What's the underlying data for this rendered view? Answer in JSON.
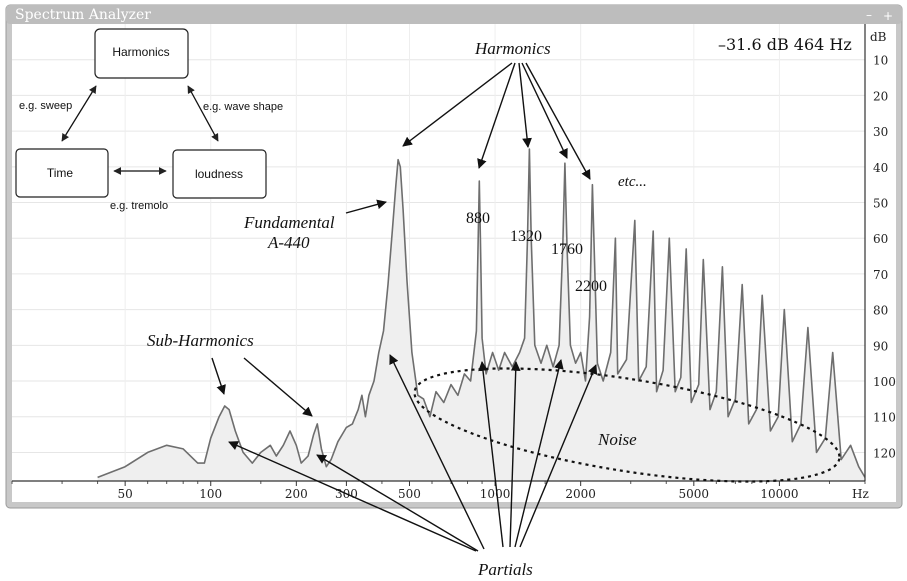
{
  "window": {
    "title": "Spectrum Analyzer",
    "minimize_glyph": "–",
    "maximize_glyph": "+"
  },
  "readout": "–31.6 dB 464 Hz",
  "diagram": {
    "nodes": {
      "harmonics": "Harmonics",
      "time": "Time",
      "loudness": "loudness"
    },
    "edge_labels": {
      "sweep": "e.g. sweep",
      "wave_shape": "e.g. wave shape",
      "tremolo": "e.g. tremolo"
    }
  },
  "annotations": {
    "harmonics": "Harmonics",
    "fundamental_line1": "Fundamental",
    "fundamental_line2": "A-440",
    "h880": "880",
    "h1320": "1320",
    "h1760": "1760",
    "h2200": "2200",
    "etc": "etc...",
    "sub_harmonics": "Sub-Harmonics",
    "noise": "Noise",
    "partials": "Partials"
  },
  "chart_data": {
    "type": "line",
    "title": "Spectrum Analyzer",
    "xlabel": "Hz",
    "ylabel": "dB",
    "x_scale": "log",
    "x_ticks": [
      50,
      100,
      200,
      300,
      500,
      1000,
      2000,
      5000,
      10000
    ],
    "x_tick_labels": [
      "50",
      "100",
      "200",
      "300",
      "500",
      "1000",
      "2000",
      "5000",
      "10000"
    ],
    "y_ticks": [
      10,
      20,
      30,
      40,
      50,
      60,
      70,
      80,
      90,
      100,
      110,
      120
    ],
    "y_tick_labels": [
      "10",
      "20",
      "30",
      "40",
      "50",
      "60",
      "70",
      "80",
      "90",
      "100",
      "110",
      "120"
    ],
    "xlim": [
      20,
      20000
    ],
    "ylim": [
      0,
      128
    ],
    "grid": true,
    "series": [
      {
        "values": [
          [
            40,
            127
          ],
          [
            50,
            124
          ],
          [
            60,
            120
          ],
          [
            70,
            118
          ],
          [
            80,
            119
          ],
          [
            90,
            123
          ],
          [
            95,
            123
          ],
          [
            100,
            116
          ],
          [
            107,
            110
          ],
          [
            112,
            107
          ],
          [
            116,
            108
          ],
          [
            122,
            114
          ],
          [
            130,
            120
          ],
          [
            140,
            123
          ],
          [
            150,
            120
          ],
          [
            162,
            118
          ],
          [
            170,
            121
          ],
          [
            180,
            118
          ],
          [
            190,
            114
          ],
          [
            200,
            118
          ],
          [
            208,
            123
          ],
          [
            220,
            121
          ],
          [
            230,
            115
          ],
          [
            237,
            112
          ],
          [
            245,
            119
          ],
          [
            255,
            124
          ],
          [
            265,
            122
          ],
          [
            280,
            117
          ],
          [
            300,
            113
          ],
          [
            315,
            112
          ],
          [
            330,
            108
          ],
          [
            340,
            104
          ],
          [
            350,
            110
          ],
          [
            360,
            104
          ],
          [
            375,
            100
          ],
          [
            390,
            92
          ],
          [
            405,
            86
          ],
          [
            420,
            73
          ],
          [
            435,
            58
          ],
          [
            448,
            45
          ],
          [
            456,
            38
          ],
          [
            464,
            40
          ],
          [
            475,
            52
          ],
          [
            490,
            72
          ],
          [
            510,
            92
          ],
          [
            535,
            104
          ],
          [
            560,
            105
          ],
          [
            590,
            110
          ],
          [
            620,
            103
          ],
          [
            660,
            106
          ],
          [
            700,
            101
          ],
          [
            740,
            104
          ],
          [
            780,
            98
          ],
          [
            820,
            100
          ],
          [
            860,
            86
          ],
          [
            872,
            60
          ],
          [
            880,
            44
          ],
          [
            888,
            60
          ],
          [
            900,
            88
          ],
          [
            930,
            98
          ],
          [
            980,
            92
          ],
          [
            1030,
            97
          ],
          [
            1080,
            92
          ],
          [
            1150,
            96
          ],
          [
            1220,
            92
          ],
          [
            1270,
            88
          ],
          [
            1300,
            60
          ],
          [
            1320,
            35
          ],
          [
            1340,
            60
          ],
          [
            1380,
            90
          ],
          [
            1450,
            95
          ],
          [
            1520,
            90
          ],
          [
            1600,
            96
          ],
          [
            1680,
            90
          ],
          [
            1730,
            62
          ],
          [
            1760,
            39
          ],
          [
            1790,
            62
          ],
          [
            1840,
            90
          ],
          [
            1920,
            95
          ],
          [
            2000,
            92
          ],
          [
            2080,
            100
          ],
          [
            2150,
            82
          ],
          [
            2180,
            60
          ],
          [
            2200,
            45
          ],
          [
            2230,
            62
          ],
          [
            2290,
            95
          ],
          [
            2400,
            100
          ],
          [
            2550,
            92
          ],
          [
            2650,
            60
          ],
          [
            2700,
            98
          ],
          [
            2900,
            94
          ],
          [
            3100,
            55
          ],
          [
            3200,
            100
          ],
          [
            3400,
            96
          ],
          [
            3600,
            58
          ],
          [
            3700,
            103
          ],
          [
            3900,
            97
          ],
          [
            4100,
            60
          ],
          [
            4300,
            103
          ],
          [
            4500,
            99
          ],
          [
            4700,
            63
          ],
          [
            4900,
            106
          ],
          [
            5200,
            101
          ],
          [
            5400,
            66
          ],
          [
            5700,
            108
          ],
          [
            6000,
            103
          ],
          [
            6300,
            68
          ],
          [
            6600,
            110
          ],
          [
            7000,
            105
          ],
          [
            7400,
            73
          ],
          [
            7800,
            112
          ],
          [
            8300,
            108
          ],
          [
            8700,
            76
          ],
          [
            9300,
            114
          ],
          [
            9900,
            110
          ],
          [
            10400,
            80
          ],
          [
            11100,
            117
          ],
          [
            11900,
            112
          ],
          [
            12600,
            85
          ],
          [
            13500,
            120
          ],
          [
            14500,
            116
          ],
          [
            15400,
            92
          ],
          [
            16500,
            122
          ],
          [
            17800,
            118
          ],
          [
            19000,
            124
          ],
          [
            20000,
            127
          ]
        ]
      }
    ]
  }
}
